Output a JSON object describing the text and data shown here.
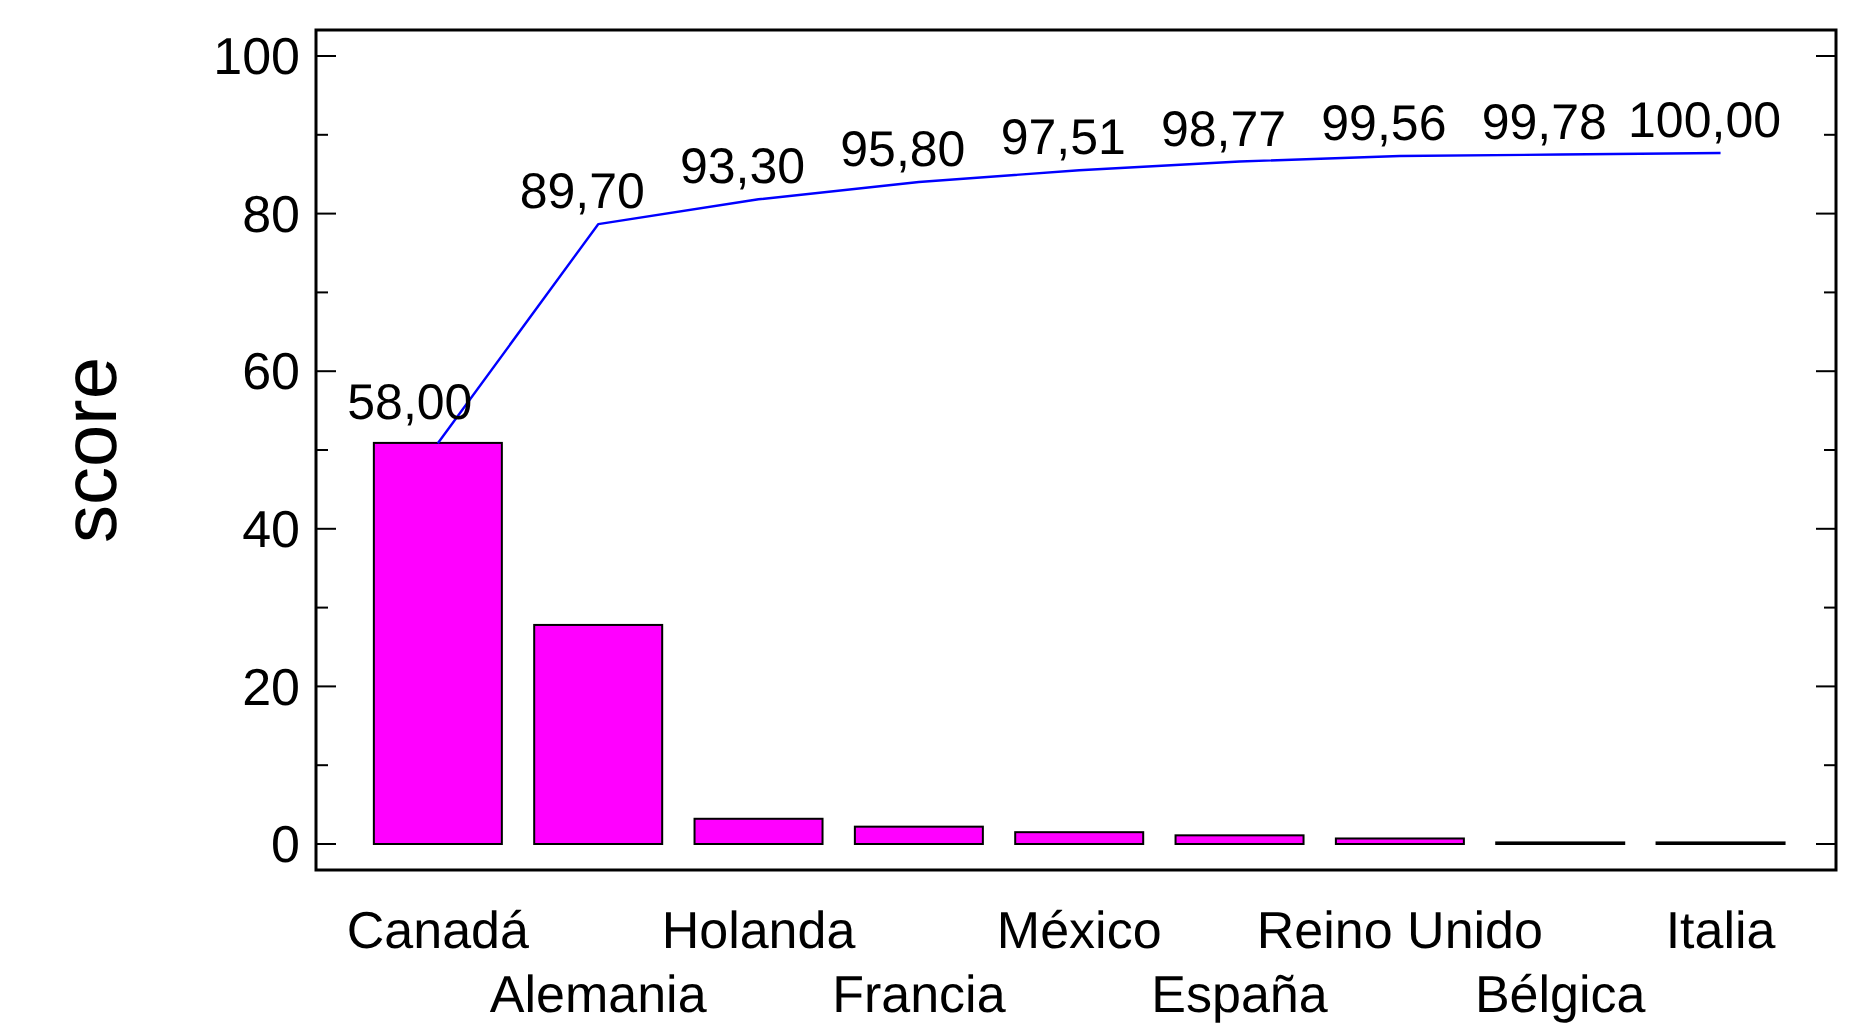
{
  "chart_data": {
    "type": "bar",
    "ylabel": "score",
    "categories": [
      "Canadá",
      "Alemania",
      "Holanda",
      "Francia",
      "México",
      "España",
      "Reino Unido",
      "Bélgica",
      "Italia"
    ],
    "series": [
      {
        "color": "#ff00ff",
        "values": [
          50.9,
          27.8,
          3.2,
          2.2,
          1.5,
          1.1,
          0.7,
          0.2,
          0.2
        ]
      },
      {
        "type": "line",
        "axis": "y2",
        "color": "#0000ff",
        "values": [
          58.0,
          89.7,
          93.3,
          95.8,
          97.51,
          98.77,
          99.56,
          99.78,
          100.0
        ],
        "value_labels": [
          "58,00",
          "89,70",
          "93,30",
          "95,80",
          "97,51",
          "98,77",
          "99,56",
          "99,78",
          "100,00"
        ]
      }
    ],
    "ylim": [
      -3.3,
      103.3
    ],
    "y2lim": [
      -3.76,
      117.8
    ],
    "yticks": [
      0,
      {
        "value": 10,
        "label": null
      },
      20,
      {
        "value": 30,
        "label": null
      },
      40,
      {
        "value": 50,
        "label": null
      },
      60,
      {
        "value": 70,
        "label": null
      },
      80,
      {
        "value": 90,
        "label": null
      },
      100
    ],
    "grid": false,
    "marker": "none"
  }
}
